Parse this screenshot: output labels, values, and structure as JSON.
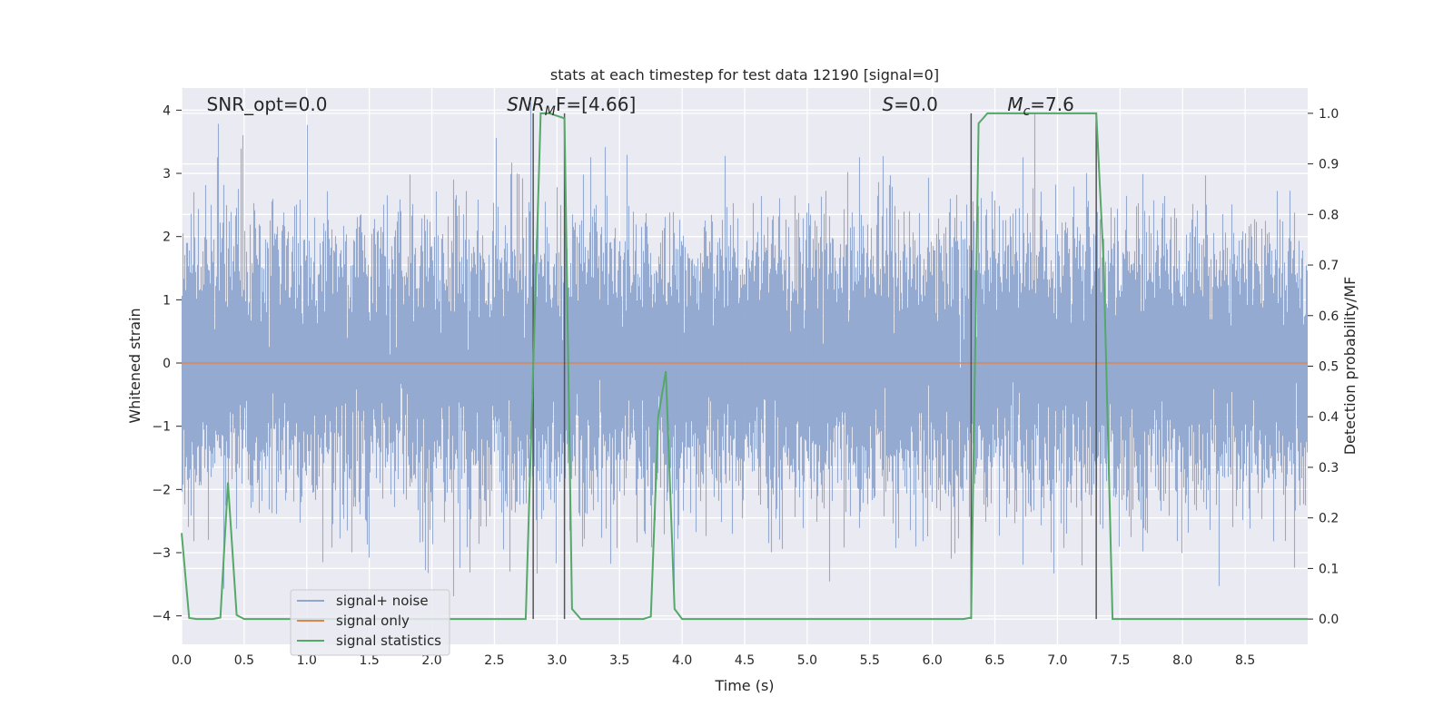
{
  "chart_data": {
    "type": "line",
    "title": "stats at each timestep for test data 12190 [signal=0]",
    "xlabel": "Time (s)",
    "ylabel_left": "Whitened strain",
    "ylabel_right": "Detection probability/MF",
    "xlim": [
      0,
      9
    ],
    "ylim_left": [
      -4.45,
      4.35
    ],
    "ylim_right": [
      -0.05,
      1.05
    ],
    "x_ticks": [
      "0.0",
      "0.5",
      "1.0",
      "1.5",
      "2.0",
      "2.5",
      "3.0",
      "3.5",
      "4.0",
      "4.5",
      "5.0",
      "5.5",
      "6.0",
      "6.5",
      "7.0",
      "7.5",
      "8.0",
      "8.5"
    ],
    "y_ticks_left": [
      "−4",
      "−3",
      "−2",
      "−1",
      "0",
      "1",
      "2",
      "3",
      "4"
    ],
    "y_ticks_right": [
      "0.0",
      "0.1",
      "0.2",
      "0.3",
      "0.4",
      "0.5",
      "0.6",
      "0.7",
      "0.8",
      "0.9",
      "1.0"
    ],
    "grid": true,
    "legend_position": "lower-left",
    "annotations": [
      {
        "prefix": "SNR_opt",
        "sub": "",
        "suffix": "=0.0",
        "italic": false,
        "x": 0.2
      },
      {
        "prefix": "SNR",
        "sub": "M",
        "suffix": "F=[4.66]",
        "italic": true,
        "x": 2.6
      },
      {
        "prefix": "S",
        "sub": "",
        "suffix": "=0.0",
        "italic": true,
        "x": 5.6
      },
      {
        "prefix": "M",
        "sub": "c",
        "suffix": "=7.6",
        "italic": true,
        "x": 6.6
      }
    ],
    "vertical_lines": [
      2.81,
      3.06,
      6.31,
      7.31
    ],
    "series": [
      {
        "name": "signal+ noise",
        "color": "#8fa6cf",
        "kind": "noise",
        "sigma": 1.0,
        "sample_rate": 2048
      },
      {
        "name": "signal only",
        "color": "#dd8452",
        "kind": "constant",
        "value": 0.0
      },
      {
        "name": "signal statistics",
        "color": "#55a868",
        "kind": "line",
        "axis": "right",
        "x": [
          0.0,
          0.06,
          0.12,
          0.25,
          0.31,
          0.37,
          0.44,
          0.5,
          0.6,
          1.0,
          1.5,
          2.0,
          2.5,
          2.75,
          2.81,
          2.87,
          2.94,
          3.06,
          3.12,
          3.19,
          3.3,
          3.5,
          3.69,
          3.75,
          3.81,
          3.87,
          3.94,
          4.0,
          4.5,
          5.0,
          5.5,
          6.0,
          6.25,
          6.31,
          6.37,
          6.44,
          6.6,
          7.0,
          7.25,
          7.31,
          7.37,
          7.44,
          7.6,
          8.0,
          8.5,
          9.0
        ],
        "y": [
          0.17,
          0.002,
          0.0,
          0.0,
          0.003,
          0.27,
          0.008,
          0.0,
          0.0,
          0.0,
          0.0,
          0.0,
          0.0,
          0.0,
          0.5,
          1.0,
          1.0,
          0.99,
          0.02,
          0.0,
          0.0,
          0.0,
          0.0,
          0.005,
          0.4,
          0.49,
          0.02,
          0.0,
          0.0,
          0.0,
          0.0,
          0.0,
          0.0,
          0.003,
          0.98,
          1.0,
          1.0,
          1.0,
          1.0,
          1.0,
          0.7,
          0.0,
          0.0,
          0.0,
          0.0,
          0.0
        ]
      }
    ]
  }
}
